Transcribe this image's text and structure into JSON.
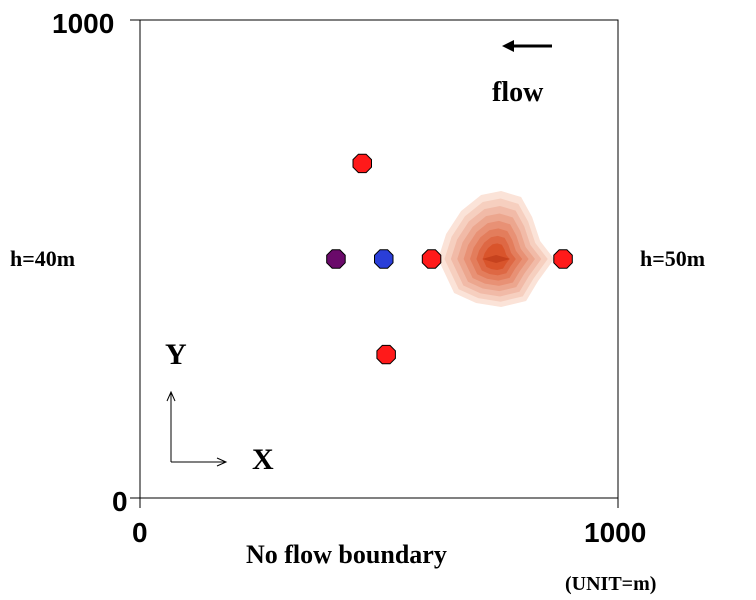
{
  "axis": {
    "y_max_label": "1000",
    "y_min_label": "0",
    "x_min_label": "0",
    "x_max_label": "1000",
    "unit": "(UNIT=m)",
    "domain_min": 0,
    "domain_max": 1000
  },
  "boundaries": {
    "left": "h=40m",
    "right": "h=50m",
    "bottom": "No flow boundary"
  },
  "flow": {
    "label": "flow",
    "arrow_icon": "left-arrow-icon"
  },
  "coordinate_icon": {
    "x_label": "X",
    "y_label": "Y"
  },
  "wells": [
    {
      "id": "well-purple",
      "x": 410,
      "y": 500,
      "color": "#6a0a6a"
    },
    {
      "id": "well-blue",
      "x": 510,
      "y": 500,
      "color": "#2a3ed8"
    },
    {
      "id": "well-red-mid",
      "x": 610,
      "y": 500,
      "color": "#ff1a1a"
    },
    {
      "id": "well-red-right",
      "x": 885,
      "y": 500,
      "color": "#ff1a1a"
    },
    {
      "id": "well-red-top",
      "x": 465,
      "y": 700,
      "color": "#ff1a1a"
    },
    {
      "id": "well-red-bottom",
      "x": 515,
      "y": 300,
      "color": "#ff1a1a"
    }
  ],
  "plume": {
    "center": {
      "x": 745,
      "y": 500
    },
    "levels": 8,
    "inner_color": "#d9542b",
    "outer_color": "#fbe3d8"
  }
}
